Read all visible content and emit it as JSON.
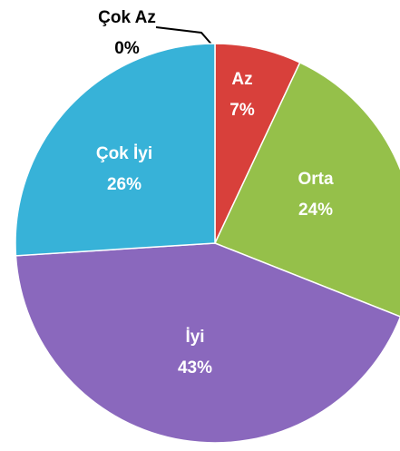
{
  "chart_data": {
    "type": "pie",
    "categories": [
      "Çok Az",
      "Az",
      "Orta",
      "İyi",
      "Çok İyi"
    ],
    "values": [
      0,
      7,
      24,
      43,
      26
    ],
    "value_labels": [
      "0%",
      "7%",
      "24%",
      "43%",
      "26%"
    ],
    "colors": [
      "#3a3a3a",
      "#d8403b",
      "#95c04a",
      "#8a68bd",
      "#37b2d8"
    ]
  }
}
